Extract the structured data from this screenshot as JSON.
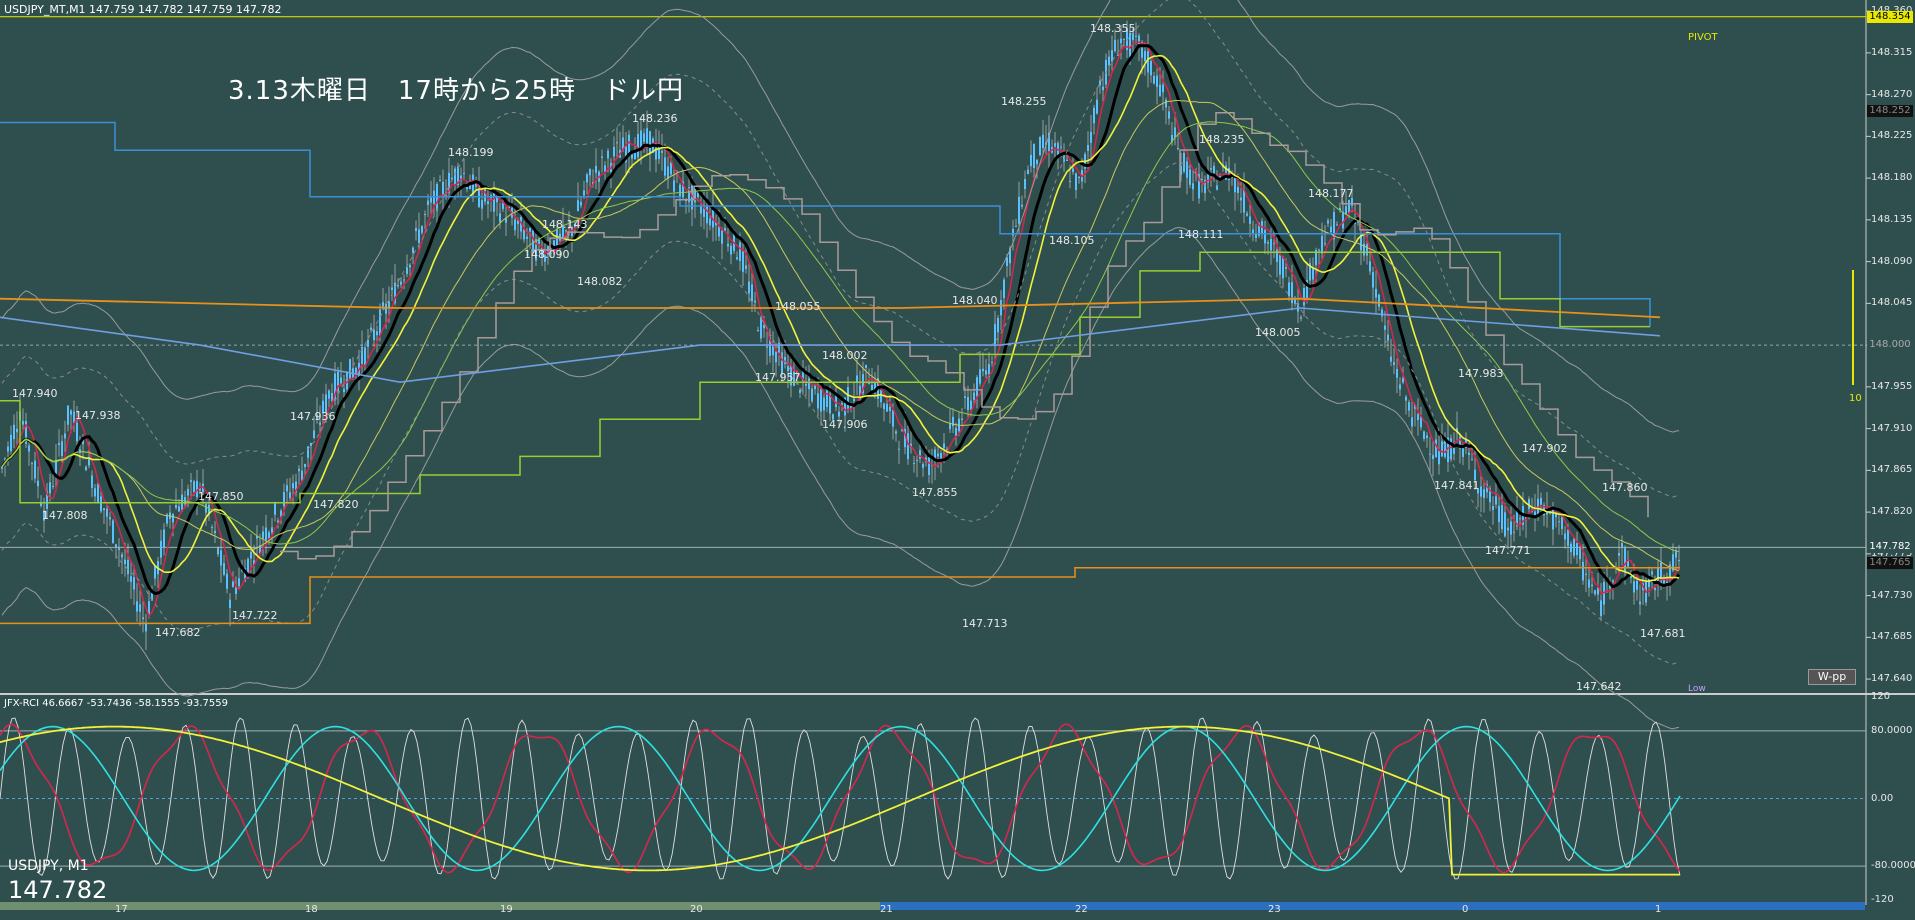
{
  "symbol_header": "USDJPY_MT,M1  147.759 147.782 147.759 147.782",
  "headline": "3.13木曜日　17時から25時　ドル円",
  "pivot_label": "PIVOT",
  "wpp_button": "W-pp",
  "rci_header": "JFX-RCI 46.6667 -53.7436 -58.1555 -93.7559",
  "footer_symbol": "USDJPY, M1",
  "footer_bid": "147.782",
  "indicator_marker": "10",
  "low_label": "Low",
  "price_axis": [
    "148.360",
    "148.315",
    "148.270",
    "148.225",
    "148.180",
    "148.135",
    "148.090",
    "148.045",
    "148.000",
    "147.955",
    "147.910",
    "147.865",
    "147.820",
    "147.775",
    "147.730",
    "147.685",
    "147.640"
  ],
  "price_tags": [
    {
      "text": "148.354",
      "bg": "#e8e800",
      "fg": "#000000"
    },
    {
      "text": "148.252",
      "bg": "#111111",
      "fg": "#888888"
    },
    {
      "text": "148.000",
      "bg": "#2f4f4f",
      "fg": "#aaaaaa"
    },
    {
      "text": "147.782",
      "bg": "#2f4f4f",
      "fg": "#ffffff"
    },
    {
      "text": "147.765",
      "bg": "#111111",
      "fg": "#888888"
    }
  ],
  "rci_axis": [
    "120",
    "80.0000",
    "0.00",
    "-80.0000",
    "-120"
  ],
  "time_axis": [
    "17",
    "18",
    "19",
    "20",
    "21",
    "22",
    "23",
    "0",
    "1"
  ],
  "chart_annotations": [
    "147.940",
    "147.938",
    "147.808",
    "147.850",
    "147.682",
    "147.722",
    "147.820",
    "147.936",
    "148.199",
    "148.143",
    "148.090",
    "148.082",
    "148.236",
    "148.055",
    "147.957",
    "148.002",
    "147.906",
    "147.855",
    "148.040",
    "147.713",
    "148.255",
    "148.355",
    "148.105",
    "148.235",
    "148.111",
    "148.177",
    "148.005",
    "147.983",
    "147.841",
    "147.902",
    "147.771",
    "147.860",
    "147.681",
    "147.642"
  ],
  "colors": {
    "background": "#2f4f4f",
    "candle": "#5bc0ff",
    "ma_black": "#000000",
    "ma_yellow": "#f2f23a",
    "ma_red": "#d7264d",
    "rci_white": "#e0e0e0",
    "rci_red": "#d7264d",
    "rci_cyan": "#2fe0e0",
    "rci_yellow": "#f2f23a",
    "step_blue": "#3a8fd9",
    "step_green": "#9acd32",
    "step_gray": "#a89a9a",
    "orange": "#e8901a"
  }
}
